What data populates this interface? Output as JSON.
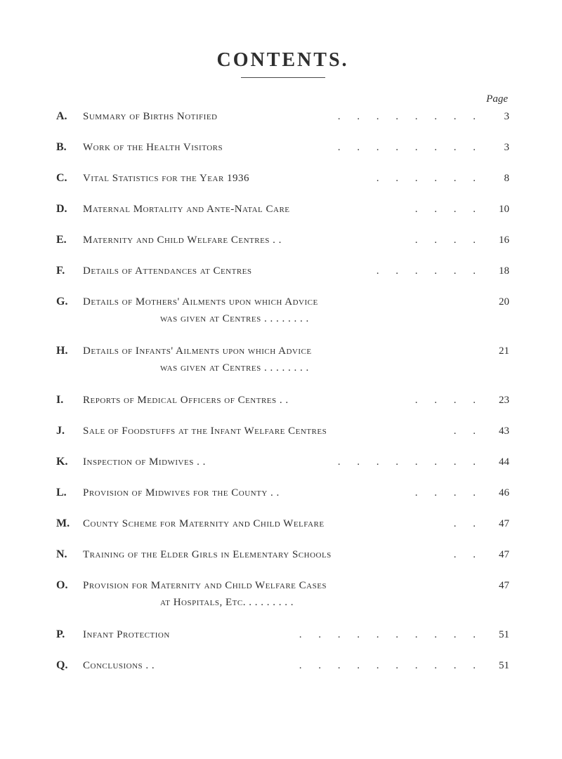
{
  "title": "CONTENTS.",
  "page_label": "Page",
  "colors": {
    "background": "#ffffff",
    "text": "#2e2e2e",
    "rule": "#4a4a4a"
  },
  "typography": {
    "title_fontsize": 28,
    "title_letterspacing": 3,
    "body_fontsize": 15,
    "font_family": "Times New Roman"
  },
  "entries": [
    {
      "letter": "A.",
      "title": "Summary of Births Notified",
      "dots": ". .   . .   . .   . .",
      "page": "3"
    },
    {
      "letter": "B.",
      "title": "Work of the Health Visitors",
      "dots": ". .   . .   . .   . .",
      "page": "3"
    },
    {
      "letter": "C.",
      "title": "Vital Statistics for the Year 1936",
      "dots": ". .   . .   . .",
      "page": "8"
    },
    {
      "letter": "D.",
      "title": "Maternal Mortality and Ante-Natal Care",
      "dots": ". .   . .",
      "page": "10"
    },
    {
      "letter": "E.",
      "title": "Maternity and Child Welfare Centres  . .",
      "dots": ". .   . .",
      "page": "16"
    },
    {
      "letter": "F.",
      "title": "Details of Attendances at Centres",
      "dots": ". .   . .   . .",
      "page": "18"
    },
    {
      "letter": "G.",
      "title": "Details of Mothers' Ailments upon which Advice",
      "title2": "was given at Centres . .   . .   . .   . .",
      "dots": "",
      "page": "20"
    },
    {
      "letter": "H.",
      "title": "Details of Infants' Ailments upon which Advice",
      "title2": "was given at Centres . .   . .   . .   . .",
      "dots": "",
      "page": "21"
    },
    {
      "letter": "I.",
      "title": "Reports of Medical Officers of Centres . .",
      "dots": ". .   . .",
      "page": "23"
    },
    {
      "letter": "J.",
      "title": "Sale of Foodstuffs at the Infant Welfare Centres",
      "dots": ". .",
      "page": "43"
    },
    {
      "letter": "K.",
      "title": "Inspection of Midwives . .",
      "dots": ". .   . .   . .   . .",
      "page": "44"
    },
    {
      "letter": "L.",
      "title": "Provision of Midwives for the County . .",
      "dots": ". .   . .",
      "page": "46"
    },
    {
      "letter": "M.",
      "title": "County Scheme for Maternity and Child Welfare",
      "dots": ". .",
      "page": "47"
    },
    {
      "letter": "N.",
      "title": "Training of the Elder Girls in Elementary Schools",
      "dots": ". .",
      "page": "47"
    },
    {
      "letter": "O.",
      "title": "Provision for Maternity and Child Welfare Cases",
      "title2": "at Hospitals, Etc.        . .    . .    . .    . .",
      "dots": "",
      "page": "47"
    },
    {
      "letter": "P.",
      "title": "Infant Protection",
      "dots": ". .   . .   . .   . .   . .",
      "page": "51"
    },
    {
      "letter": "Q.",
      "title": "Conclusions       . .",
      "dots": ". .   . .   . .   . .   . .",
      "page": "51"
    }
  ]
}
